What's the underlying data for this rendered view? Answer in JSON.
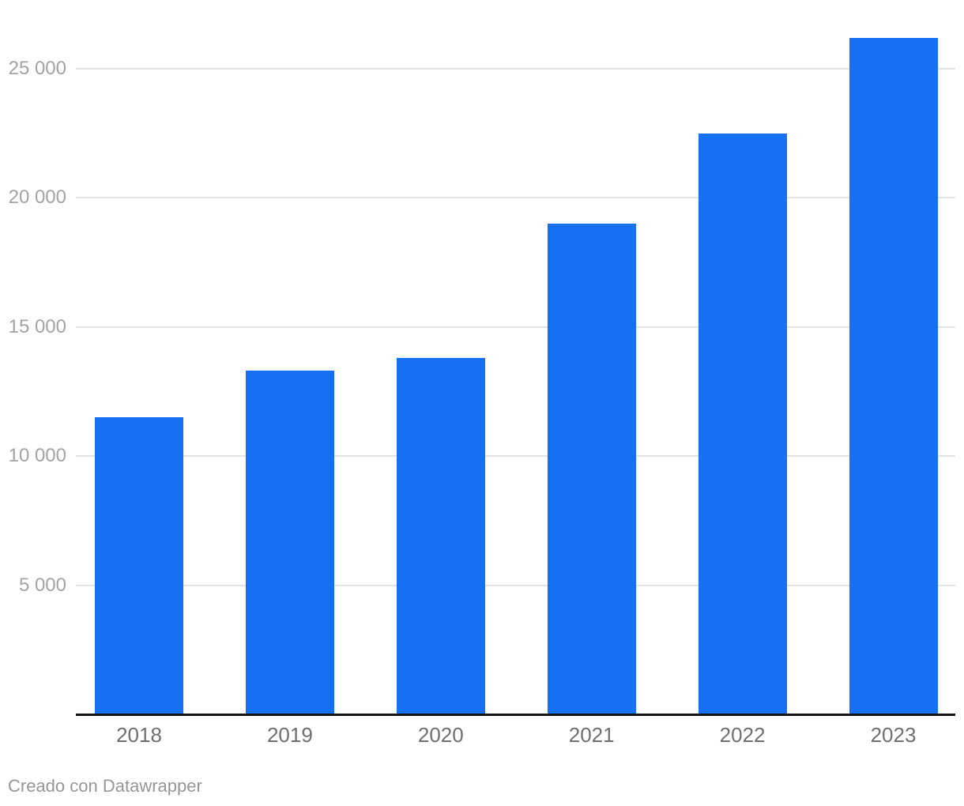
{
  "chart_data": {
    "type": "bar",
    "title": "",
    "xlabel": "",
    "ylabel": "",
    "categories": [
      "2018",
      "2019",
      "2020",
      "2021",
      "2022",
      "2023"
    ],
    "values": [
      11500,
      13300,
      13800,
      19000,
      22500,
      26200
    ],
    "ylim": [
      0,
      26750
    ],
    "yticks": [
      {
        "value": 5000,
        "label": "5 000"
      },
      {
        "value": 10000,
        "label": "10 000"
      },
      {
        "value": 15000,
        "label": "15 000"
      },
      {
        "value": 20000,
        "label": "20 000"
      },
      {
        "value": 25000,
        "label": "25 000"
      }
    ],
    "grid": true,
    "legend_position": "none"
  },
  "colors": {
    "bar": "#1570F4",
    "gridline": "#e3e3e3",
    "axis_line": "#131313",
    "ytick_label": "#a3a3a3",
    "xtick_label": "#6f6f6f",
    "footer_text": "#969696",
    "background": "#ffffff"
  },
  "footer": {
    "attribution": "Creado con Datawrapper"
  }
}
